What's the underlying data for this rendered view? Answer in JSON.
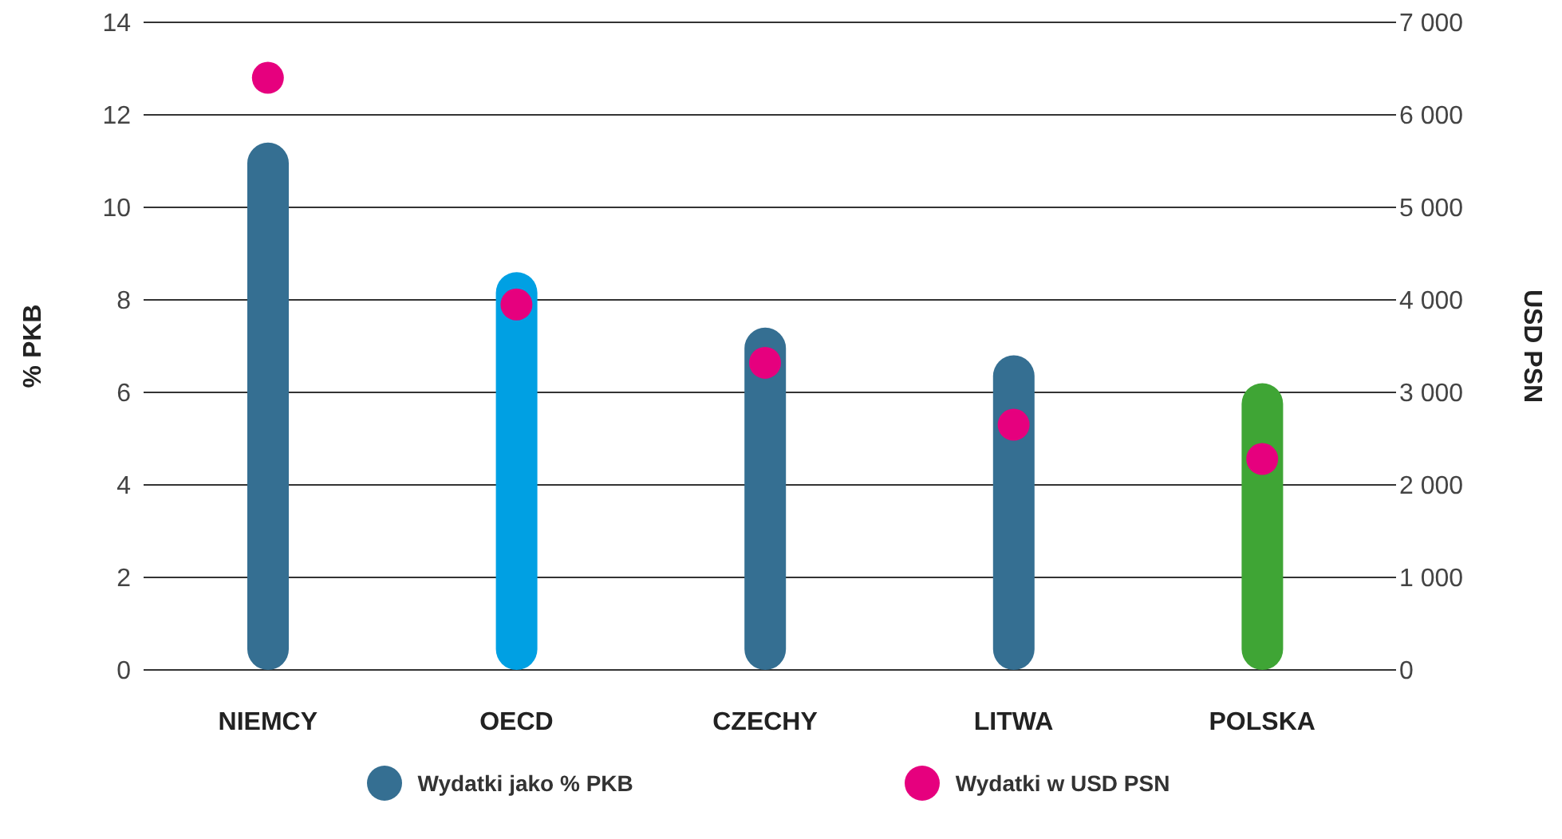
{
  "chart_data": {
    "type": "bar",
    "categories": [
      "NIEMCY",
      "OECD",
      "CZECHY",
      "LITWA",
      "POLSKA"
    ],
    "ylabel": "% PKB",
    "y2label": "USD PSN",
    "ylim": [
      0,
      14
    ],
    "yticks": [
      0,
      2,
      4,
      6,
      8,
      10,
      12,
      14
    ],
    "y2lim": [
      0,
      7000
    ],
    "y2ticks": [
      {
        "value": 0,
        "label": "0"
      },
      {
        "value": 1000,
        "label": "1 000"
      },
      {
        "value": 2000,
        "label": "2 000"
      },
      {
        "value": 3000,
        "label": "3 000"
      },
      {
        "value": 4000,
        "label": "4 000"
      },
      {
        "value": 5000,
        "label": "5 000"
      },
      {
        "value": 6000,
        "label": "6 000"
      },
      {
        "value": 7000,
        "label": "7 000"
      }
    ],
    "grid": "y",
    "legend": "bottom",
    "series": [
      {
        "name": "Wydatki jako % PKB",
        "color": "#356f92",
        "colors": [
          "#356f92",
          "#00a0e3",
          "#356f92",
          "#356f92",
          "#3fa535"
        ],
        "values": [
          11.4,
          8.6,
          7.4,
          6.8,
          6.2
        ]
      },
      {
        "name": "Wydatki w USD PSN",
        "type": "scatter",
        "axis": "y2",
        "color": "#e6007e",
        "marker": "circle",
        "values": [
          6400,
          3950,
          3320,
          2650,
          2280
        ]
      }
    ]
  }
}
